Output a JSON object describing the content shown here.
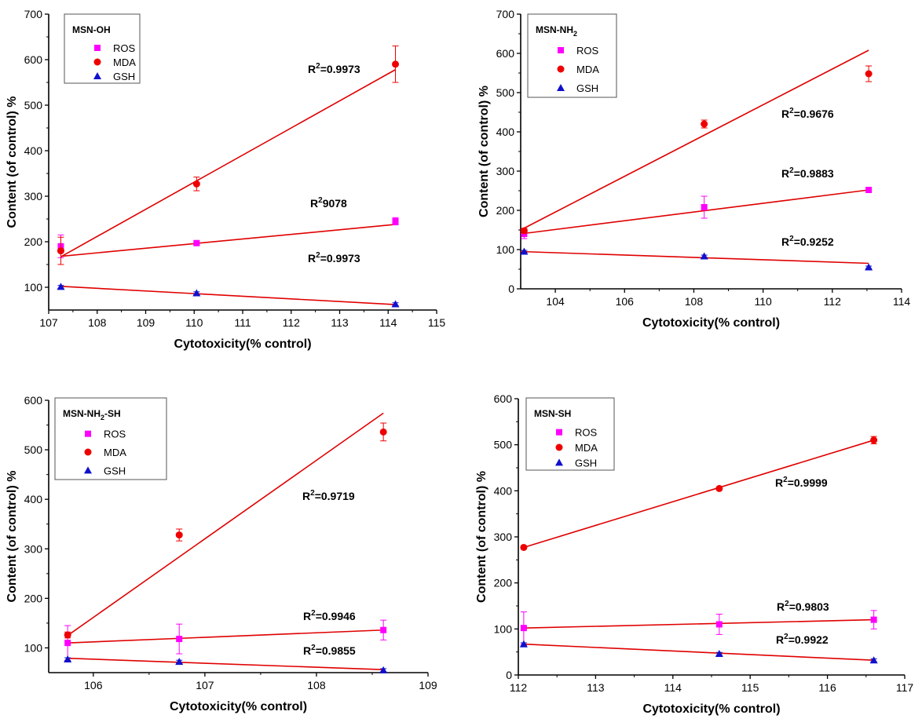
{
  "colors": {
    "ROS": "#ff00ff",
    "MDA": "#ee0000",
    "GSH": "#1010cc",
    "fit": "#e00000",
    "axis": "#000000"
  },
  "chart_data": [
    {
      "id": "msn-oh",
      "type": "scatter",
      "legend_title": "MSN-OH",
      "legend_title_sub": "",
      "legend_title_after": "",
      "xlabel": "Cytotoxicity(% control)",
      "ylabel": "Content (of control) %",
      "xlim": [
        107,
        115
      ],
      "ylim": [
        50,
        700
      ],
      "xticks": [
        107,
        108,
        109,
        110,
        111,
        112,
        113,
        114,
        115
      ],
      "yticks": [
        100,
        200,
        300,
        400,
        500,
        600,
        700
      ],
      "legend_position": "top-left",
      "series": [
        {
          "name": "ROS",
          "marker": "square",
          "x": [
            107.25,
            110.05,
            114.15
          ],
          "y": [
            190,
            197,
            245
          ],
          "err": [
            25,
            4,
            8
          ],
          "fit": [
            [
              107.25,
              168
            ],
            [
              114.15,
              238
            ]
          ],
          "r2_label": "9078"
        },
        {
          "name": "MDA",
          "marker": "circle",
          "x": [
            107.25,
            110.05,
            114.15
          ],
          "y": [
            180,
            327,
            590
          ],
          "err": [
            30,
            15,
            40
          ],
          "fit": [
            [
              107.25,
              167
            ],
            [
              114.15,
              578
            ]
          ],
          "r2_label": "=0.9973"
        },
        {
          "name": "GSH",
          "marker": "triangle",
          "x": [
            107.25,
            110.05,
            114.15
          ],
          "y": [
            101,
            87,
            63
          ],
          "err": [
            3,
            3,
            3
          ],
          "fit": [
            [
              107.25,
              102
            ],
            [
              114.15,
              62
            ]
          ],
          "r2_label": "=0.9973"
        }
      ]
    },
    {
      "id": "msn-nh2",
      "type": "scatter",
      "legend_title": "MSN-NH",
      "legend_title_sub": "2",
      "legend_title_after": "",
      "xlabel": "Cytotoxicity(% control)",
      "ylabel": "Content (of control) %",
      "xlim": [
        103,
        114
      ],
      "ylim": [
        0,
        700
      ],
      "xticks": [
        104,
        106,
        108,
        110,
        112,
        114
      ],
      "yticks": [
        0,
        100,
        200,
        300,
        400,
        500,
        600,
        700
      ],
      "legend_position": "top-left",
      "series": [
        {
          "name": "ROS",
          "marker": "square",
          "x": [
            103.1,
            108.3,
            113.05
          ],
          "y": [
            140,
            208,
            252
          ],
          "err": [
            12,
            28,
            4
          ],
          "fit": [
            [
              103.0,
              140
            ],
            [
              113.05,
              252
            ]
          ],
          "r2_label": "=0.9883"
        },
        {
          "name": "MDA",
          "marker": "circle",
          "x": [
            103.1,
            108.3,
            113.05
          ],
          "y": [
            148,
            420,
            548
          ],
          "err": [
            6,
            10,
            20
          ],
          "fit": [
            [
              103.0,
              150
            ],
            [
              113.05,
              608
            ]
          ],
          "r2_label": "=0.9676"
        },
        {
          "name": "GSH",
          "marker": "triangle",
          "x": [
            103.1,
            108.3,
            113.05
          ],
          "y": [
            95,
            83,
            55
          ],
          "err": [
            3,
            3,
            3
          ],
          "fit": [
            [
              103.0,
              95
            ],
            [
              113.05,
              65
            ]
          ],
          "r2_label": "=0.9252"
        }
      ]
    },
    {
      "id": "msn-nh2-sh",
      "type": "scatter",
      "legend_title": "MSN-NH",
      "legend_title_sub": "2",
      "legend_title_after": "-SH",
      "xlabel": "Cytotoxicity(% control)",
      "ylabel": "Content (of control) %",
      "xlim": [
        105.6,
        109
      ],
      "ylim": [
        50,
        600
      ],
      "xticks": [
        106,
        107,
        108,
        109
      ],
      "yticks": [
        100,
        200,
        300,
        400,
        500,
        600
      ],
      "legend_position": "top-left",
      "series": [
        {
          "name": "ROS",
          "marker": "square",
          "x": [
            105.77,
            106.77,
            108.6
          ],
          "y": [
            110,
            118,
            136
          ],
          "err": [
            35,
            30,
            20
          ],
          "fit": [
            [
              105.77,
              110
            ],
            [
              108.6,
              136
            ]
          ],
          "r2_label": "=0.9946"
        },
        {
          "name": "MDA",
          "marker": "circle",
          "x": [
            105.77,
            106.77,
            108.6
          ],
          "y": [
            126,
            328,
            536
          ],
          "err": [
            6,
            12,
            18
          ],
          "fit": [
            [
              105.77,
              125
            ],
            [
              108.6,
              574
            ]
          ],
          "r2_label": "=0.9719"
        },
        {
          "name": "GSH",
          "marker": "triangle",
          "x": [
            105.77,
            106.77,
            108.6
          ],
          "y": [
            77,
            72,
            55
          ],
          "err": [
            3,
            3,
            3
          ],
          "fit": [
            [
              105.77,
              79
            ],
            [
              108.6,
              56
            ]
          ],
          "r2_label": "=0.9855"
        }
      ]
    },
    {
      "id": "msn-sh",
      "type": "scatter",
      "legend_title": "MSN-SH",
      "legend_title_sub": "",
      "legend_title_after": "",
      "xlabel": "Cytotoxicity(% control)",
      "ylabel": "Content (of control) %",
      "xlim": [
        112,
        117
      ],
      "ylim": [
        0,
        600
      ],
      "xticks": [
        112,
        113,
        114,
        115,
        116,
        117
      ],
      "yticks": [
        0,
        100,
        200,
        300,
        400,
        500,
        600
      ],
      "legend_position": "top-left",
      "series": [
        {
          "name": "ROS",
          "marker": "square",
          "x": [
            112.07,
            114.6,
            116.6
          ],
          "y": [
            102,
            110,
            120
          ],
          "err": [
            35,
            22,
            20
          ],
          "fit": [
            [
              112.07,
              102
            ],
            [
              116.6,
              120
            ]
          ],
          "r2_label": "=0.9803"
        },
        {
          "name": "MDA",
          "marker": "circle",
          "x": [
            112.07,
            114.6,
            116.6
          ],
          "y": [
            277,
            405,
            510
          ],
          "err": [
            3,
            3,
            8
          ],
          "fit": [
            [
              112.07,
              277
            ],
            [
              116.6,
              510
            ]
          ],
          "r2_label": "=0.9999"
        },
        {
          "name": "GSH",
          "marker": "triangle",
          "x": [
            112.07,
            114.6,
            116.6
          ],
          "y": [
            67,
            46,
            32
          ],
          "err": [
            3,
            3,
            3
          ],
          "fit": [
            [
              112.07,
              67
            ],
            [
              116.6,
              32
            ]
          ],
          "r2_label": "=0.9922"
        }
      ]
    }
  ]
}
